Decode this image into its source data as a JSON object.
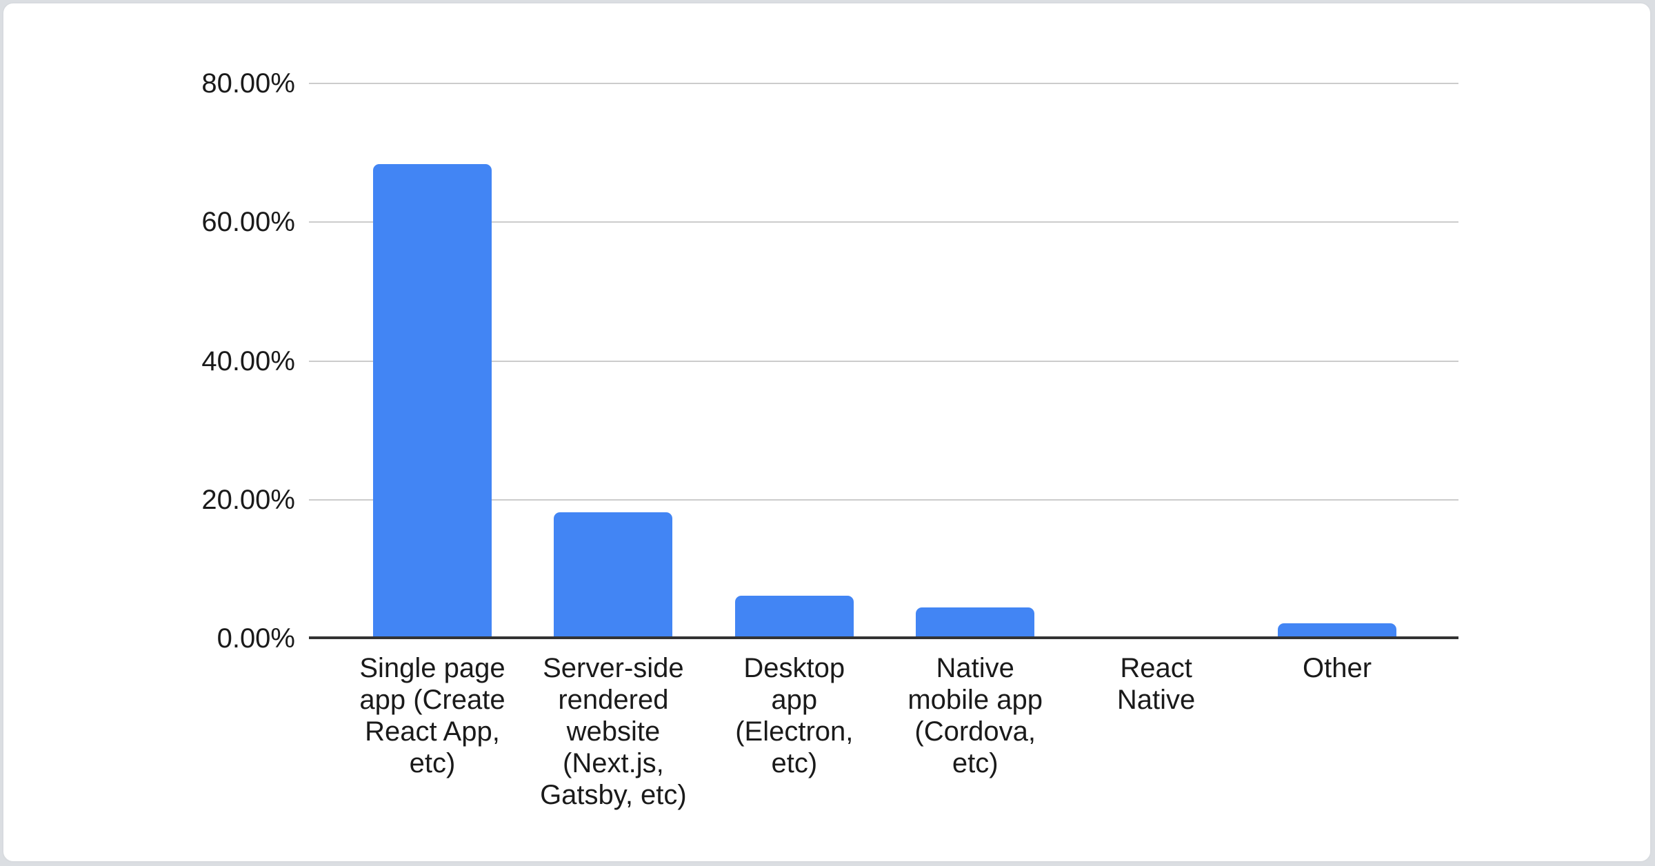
{
  "chart_data": {
    "type": "bar",
    "title": "",
    "xlabel": "",
    "ylabel": "",
    "legend": "none",
    "grid": true,
    "categories": [
      "Single page app (Create React App, etc)",
      "Server-side rendered website (Next.js, Gatsby, etc)",
      "Desktop app (Electron, etc)",
      "Native mobile app (Cordova, etc)",
      "React Native",
      "Other"
    ],
    "values": [
      68.4,
      18.2,
      6.2,
      4.5,
      0,
      2.2
    ],
    "value_unit": "%",
    "ylim": [
      0,
      80
    ],
    "y_tick_values": [
      0,
      20,
      40,
      60,
      80
    ],
    "y_ticks": [
      "0.00%",
      "20.00%",
      "40.00%",
      "60.00%",
      "80.00%"
    ],
    "colors": {
      "bar": "#4285f4",
      "grid_line": "#cccccc",
      "axis_line": "#333333",
      "text": "#1a1a1a",
      "card_background": "#ffffff",
      "card_border": "#d8dbdf",
      "page_background": "#dbdee2"
    }
  }
}
